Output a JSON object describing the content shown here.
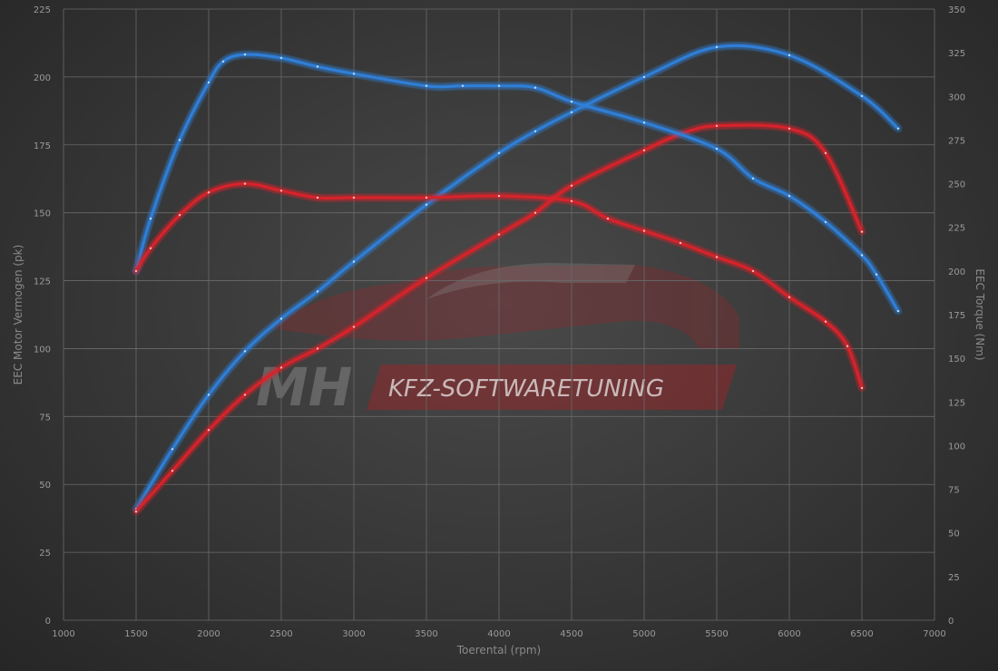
{
  "chart_data": {
    "type": "line",
    "xlabel": "Toerental (rpm)",
    "ylabel_left": "EEC Motor Vermogen (pk)",
    "ylabel_right": "EEC Torque (Nm)",
    "xlim": [
      1000,
      7000
    ],
    "ylim_left": [
      0,
      225
    ],
    "ylim_right": [
      0,
      350
    ],
    "x_ticks": [
      1000,
      1500,
      2000,
      2500,
      3000,
      3500,
      4000,
      4500,
      5000,
      5500,
      6000,
      6500,
      7000
    ],
    "y_left_ticks": [
      0,
      25,
      50,
      75,
      100,
      125,
      150,
      175,
      200,
      225
    ],
    "y_right_ticks": [
      0,
      25,
      50,
      75,
      100,
      125,
      150,
      175,
      200,
      225,
      250,
      275,
      300,
      325,
      350
    ],
    "grid": true,
    "series": [
      {
        "axis": "left",
        "color": "#2f7fd8",
        "x": [
          1500,
          1750,
          2000,
          2250,
          2500,
          2750,
          3000,
          3500,
          4000,
          4250,
          4500,
          5000,
          5500,
          6000,
          6500,
          6750
        ],
        "y": [
          41,
          63,
          83,
          99,
          111,
          121,
          132,
          153,
          172,
          180,
          187,
          200,
          211,
          208,
          193,
          181
        ]
      },
      {
        "axis": "left",
        "color": "#d8242b",
        "x": [
          1500,
          1750,
          2000,
          2250,
          2500,
          2750,
          3000,
          3500,
          4000,
          4250,
          4500,
          5000,
          5250,
          5500,
          6000,
          6250,
          6500
        ],
        "y": [
          40,
          55,
          70,
          83,
          93,
          100,
          108,
          126,
          142,
          150,
          160,
          173,
          179,
          182,
          181,
          172,
          143
        ]
      },
      {
        "axis": "right",
        "color": "#2f7fd8",
        "x": [
          1500,
          1600,
          1800,
          2000,
          2100,
          2250,
          2500,
          2750,
          3000,
          3500,
          3750,
          4000,
          4250,
          4500,
          5000,
          5500,
          5750,
          6000,
          6250,
          6500,
          6600,
          6750
        ],
        "y": [
          200,
          230,
          275,
          308,
          320,
          324,
          322,
          317,
          313,
          306,
          306,
          306,
          305,
          297,
          285,
          270,
          253,
          243,
          228,
          209,
          198,
          177
        ]
      },
      {
        "axis": "right",
        "color": "#d8242b",
        "x": [
          1500,
          1600,
          1800,
          2000,
          2250,
          2500,
          2750,
          3000,
          3500,
          4000,
          4500,
          4750,
          5000,
          5250,
          5500,
          5750,
          6000,
          6250,
          6400,
          6500
        ],
        "y": [
          200,
          213,
          232,
          245,
          250,
          246,
          242,
          242,
          242,
          243,
          240,
          230,
          223,
          216,
          208,
          200,
          185,
          171,
          157,
          133
        ]
      }
    ]
  },
  "watermark": {
    "brand_initials": "MH",
    "brand_name": "KFZ-SOFTWARETUNING"
  }
}
